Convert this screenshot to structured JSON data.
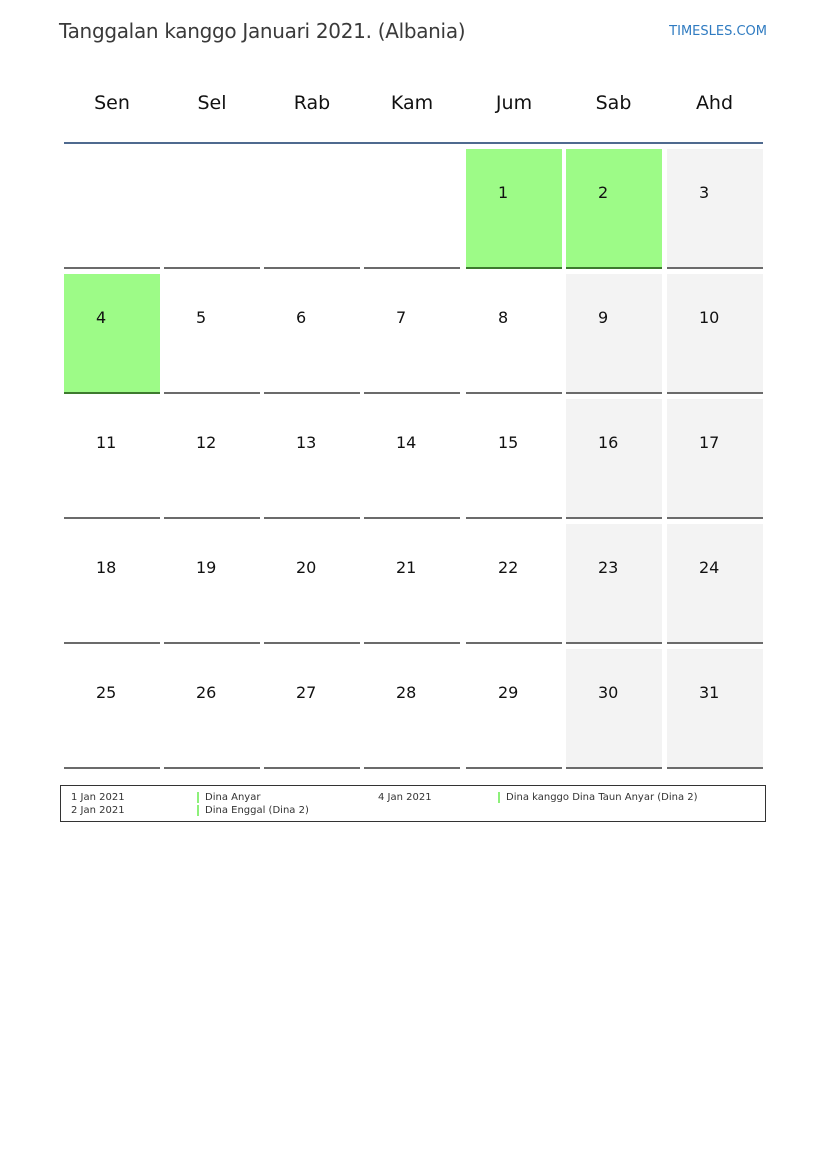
{
  "header": {
    "title": "Tanggalan kanggo Januari 2021. (Albania)",
    "brand": "TIMESLES.COM"
  },
  "colors": {
    "holiday": "#9dfb87",
    "weekend": "#f3f3f3",
    "header_line": "#4f6a8f",
    "brand": "#2f7bc1"
  },
  "weekdays": [
    "Sen",
    "Sel",
    "Rab",
    "Kam",
    "Jum",
    "Sab",
    "Ahd"
  ],
  "weeks": [
    [
      {
        "day": "",
        "type": "empty"
      },
      {
        "day": "",
        "type": "empty"
      },
      {
        "day": "",
        "type": "empty"
      },
      {
        "day": "",
        "type": "empty"
      },
      {
        "day": "1",
        "type": "holiday"
      },
      {
        "day": "2",
        "type": "holiday"
      },
      {
        "day": "3",
        "type": "weekend"
      }
    ],
    [
      {
        "day": "4",
        "type": "holiday"
      },
      {
        "day": "5",
        "type": "normal"
      },
      {
        "day": "6",
        "type": "normal"
      },
      {
        "day": "7",
        "type": "normal"
      },
      {
        "day": "8",
        "type": "normal"
      },
      {
        "day": "9",
        "type": "weekend"
      },
      {
        "day": "10",
        "type": "weekend"
      }
    ],
    [
      {
        "day": "11",
        "type": "normal"
      },
      {
        "day": "12",
        "type": "normal"
      },
      {
        "day": "13",
        "type": "normal"
      },
      {
        "day": "14",
        "type": "normal"
      },
      {
        "day": "15",
        "type": "normal"
      },
      {
        "day": "16",
        "type": "weekend"
      },
      {
        "day": "17",
        "type": "weekend"
      }
    ],
    [
      {
        "day": "18",
        "type": "normal"
      },
      {
        "day": "19",
        "type": "normal"
      },
      {
        "day": "20",
        "type": "normal"
      },
      {
        "day": "21",
        "type": "normal"
      },
      {
        "day": "22",
        "type": "normal"
      },
      {
        "day": "23",
        "type": "weekend"
      },
      {
        "day": "24",
        "type": "weekend"
      }
    ],
    [
      {
        "day": "25",
        "type": "normal"
      },
      {
        "day": "26",
        "type": "normal"
      },
      {
        "day": "27",
        "type": "normal"
      },
      {
        "day": "28",
        "type": "normal"
      },
      {
        "day": "29",
        "type": "normal"
      },
      {
        "day": "30",
        "type": "weekend"
      },
      {
        "day": "31",
        "type": "weekend"
      }
    ]
  ],
  "legend": [
    {
      "date": "1 Jan 2021",
      "name": "Dina Anyar"
    },
    {
      "date": "2 Jan 2021",
      "name": "Dina Enggal (Dina 2)"
    },
    {
      "date": "4 Jan 2021",
      "name": "Dina kanggo Dina Taun Anyar (Dina 2)"
    }
  ]
}
